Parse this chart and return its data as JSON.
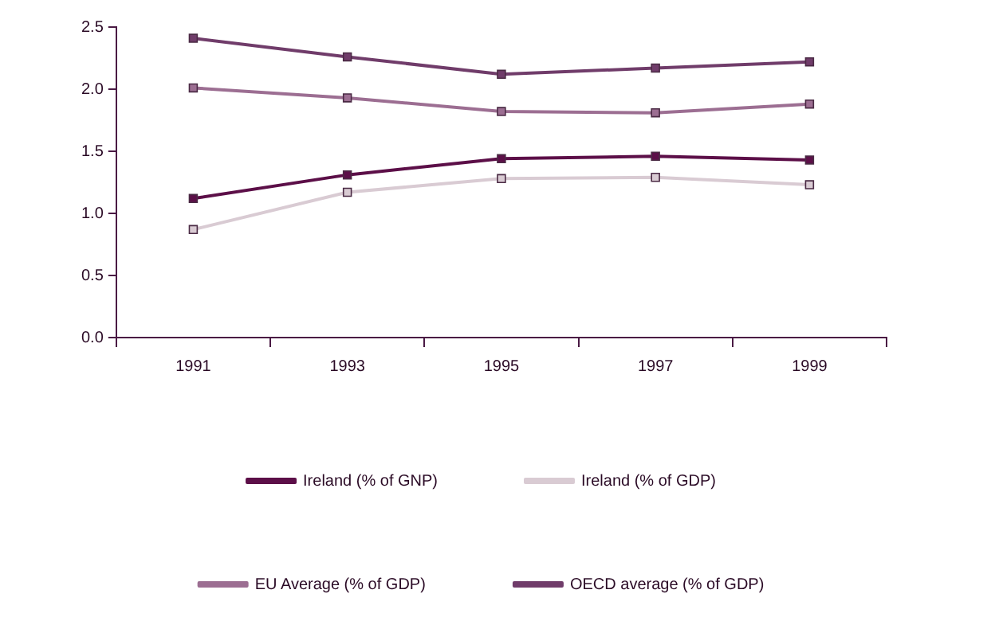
{
  "chart_data": {
    "type": "line",
    "categories": [
      "1991",
      "1993",
      "1995",
      "1997",
      "1999"
    ],
    "series": [
      {
        "name": "Ireland (% of GNP)",
        "color": "#5c0f48",
        "values": [
          1.12,
          1.31,
          1.44,
          1.46,
          1.43
        ]
      },
      {
        "name": "Ireland (% of GDP)",
        "color": "#d9cbd3",
        "values": [
          0.87,
          1.17,
          1.28,
          1.29,
          1.23
        ]
      },
      {
        "name": "EU Average (% of GDP)",
        "color": "#9c6e92",
        "values": [
          2.01,
          1.93,
          1.82,
          1.81,
          1.88
        ]
      },
      {
        "name": "OECD average (% of GDP)",
        "color": "#703c6a",
        "values": [
          2.41,
          2.26,
          2.12,
          2.17,
          2.22
        ]
      }
    ],
    "ylim": [
      0,
      2.5
    ],
    "yticks": [
      {
        "value": 0,
        "label": "0.0"
      },
      {
        "value": 0.5,
        "label": "0.5"
      },
      {
        "value": 1,
        "label": "1.0"
      },
      {
        "value": 1.5,
        "label": "1.5"
      },
      {
        "value": 2,
        "label": "2.0"
      },
      {
        "value": 2.5,
        "label": "2.5"
      }
    ],
    "grid": false,
    "legend": "bottom",
    "marker": "square",
    "line_style": "solid"
  }
}
